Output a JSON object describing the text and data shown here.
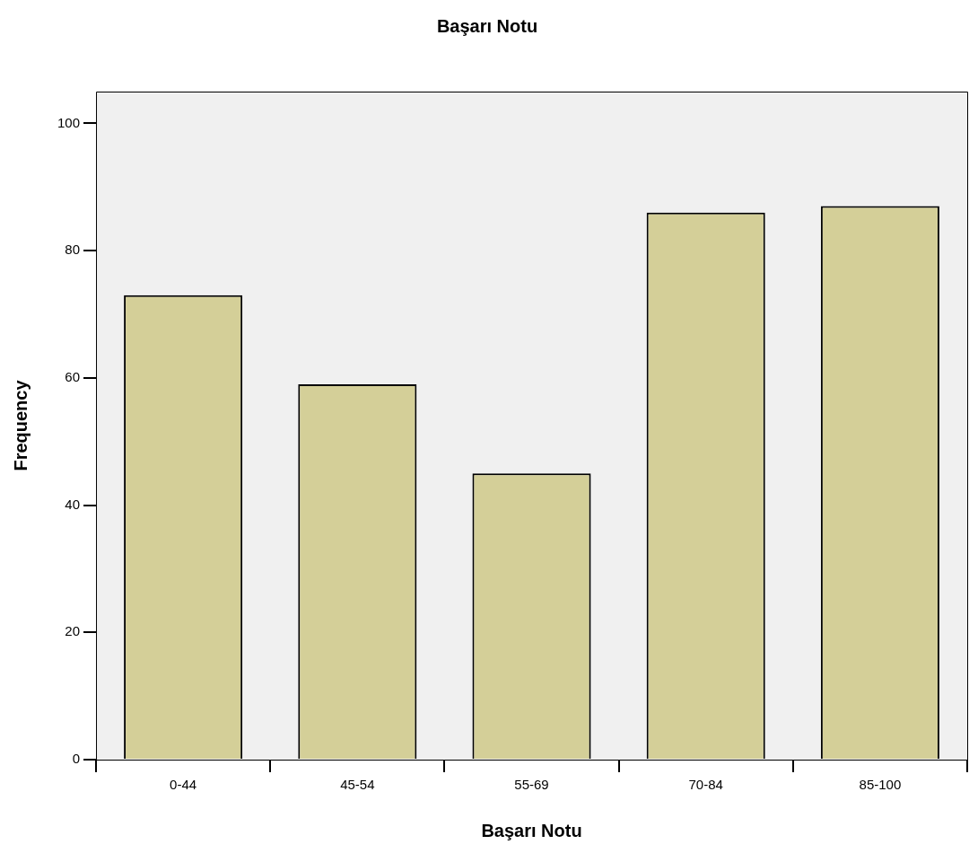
{
  "chart_data": {
    "type": "bar",
    "title": "Başarı Notu",
    "xlabel": "Başarı Notu",
    "ylabel": "Frequency",
    "categories": [
      "0-44",
      "45-54",
      "55-69",
      "70-84",
      "85-100"
    ],
    "values": [
      73,
      59,
      45,
      86,
      87
    ],
    "color": "#d4cf98",
    "ylim": [
      0,
      105
    ],
    "yticks": [
      0,
      20,
      40,
      60,
      80,
      100
    ],
    "grid": false,
    "legend": false
  }
}
